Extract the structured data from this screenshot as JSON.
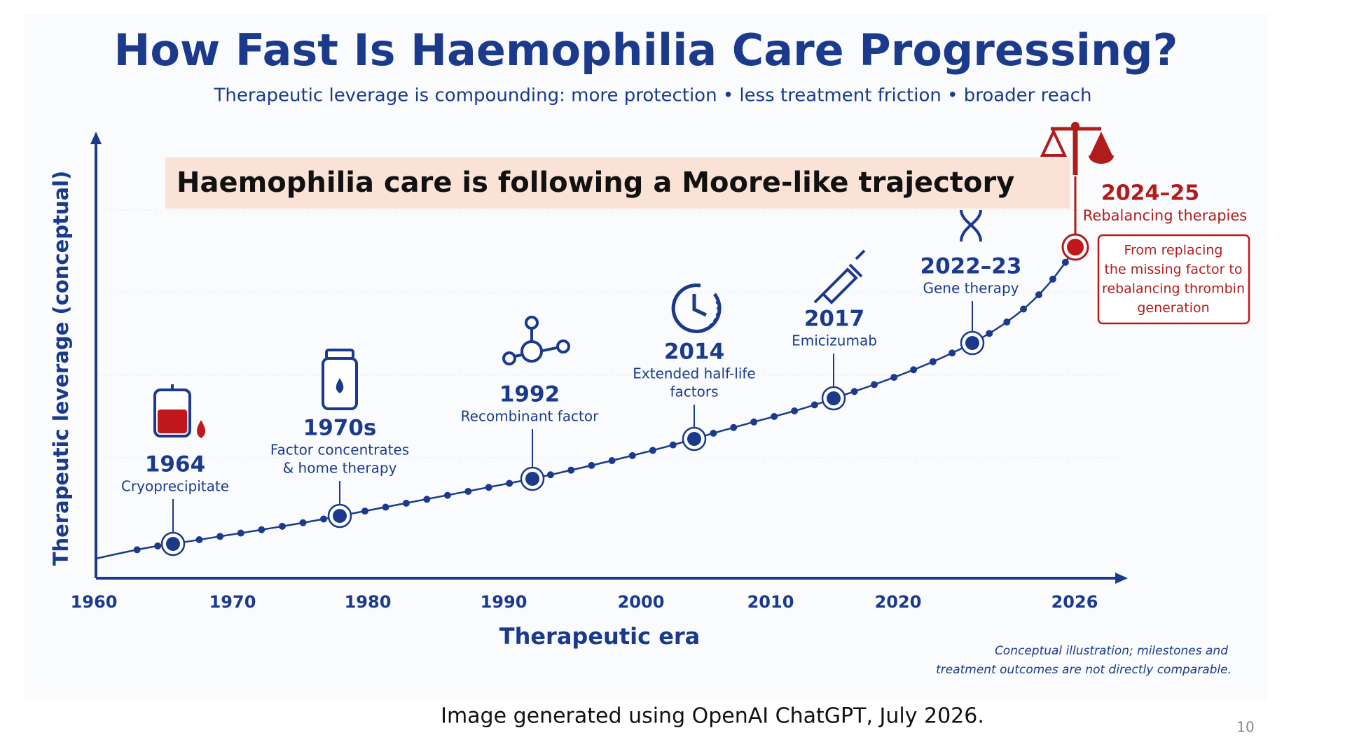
{
  "title": "How Fast Is Haemophilia Care Progressing?",
  "subtitle": "Therapeutic leverage is compounding: more protection • less treatment friction • broader reach",
  "callout": "Haemophilia care is following a Moore-like trajectory",
  "y_axis_label": "Therapeutic leverage (conceptual)",
  "x_axis_label": "Therapeutic era",
  "x_ticks": [
    "1960",
    "1970",
    "1980",
    "1990",
    "2000",
    "2010",
    "2020",
    "2026"
  ],
  "milestones": [
    {
      "year": "1964",
      "label": [
        "Cryoprecipitate"
      ]
    },
    {
      "year": "1970s",
      "label": [
        "Factor concentrates",
        "& home therapy"
      ]
    },
    {
      "year": "1992",
      "label": [
        "Recombinant factor"
      ]
    },
    {
      "year": "2014",
      "label": [
        "Extended half-life",
        "factors"
      ]
    },
    {
      "year": "2017",
      "label": [
        "Emicizumab"
      ]
    },
    {
      "year": "2022–23",
      "label": [
        "Gene therapy"
      ]
    }
  ],
  "highlight": {
    "year": "2024–25",
    "label": "Rebalancing therapies",
    "box": [
      "From replacing",
      "the missing factor to",
      "rebalancing thrombin",
      "generation"
    ]
  },
  "note": [
    "Conceptual illustration; milestones and",
    "treatment outcomes are not directly comparable."
  ],
  "footer": "Image generated using OpenAI ChatGPT, July 2026.",
  "page_number": "10"
}
